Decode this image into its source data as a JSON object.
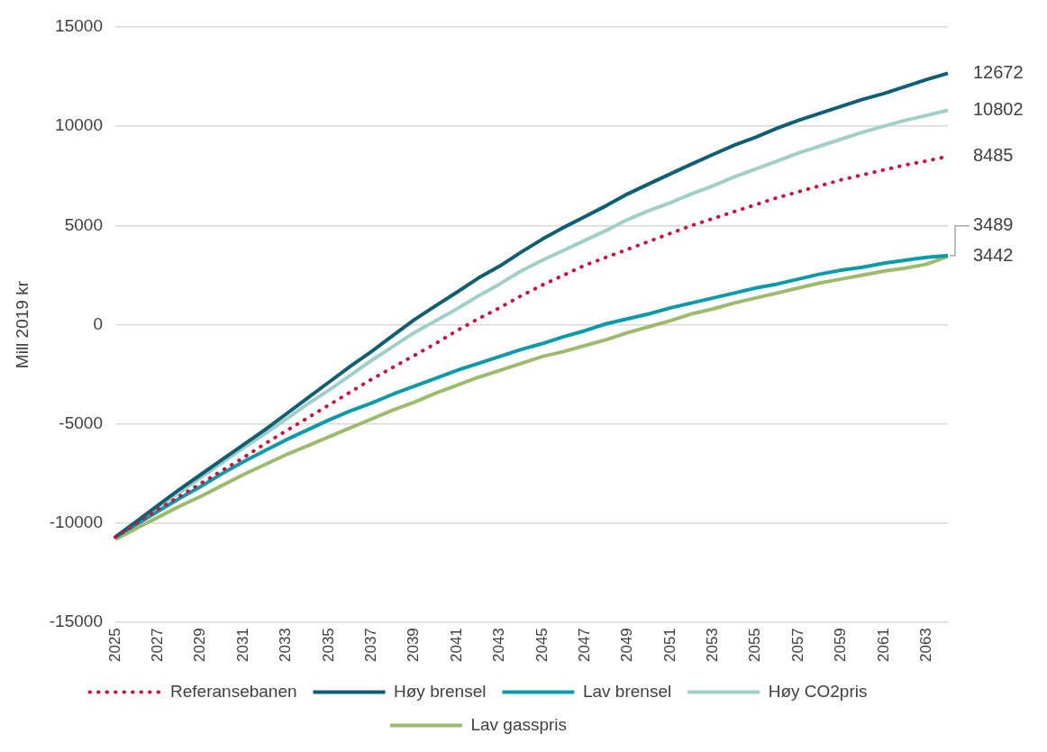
{
  "chart_data": {
    "type": "line",
    "ylabel": "Mill 2019 kr",
    "categories": [
      "2025",
      null,
      "2027",
      null,
      "2029",
      null,
      "2031",
      null,
      "2033",
      null,
      "2035",
      null,
      "2037",
      null,
      "2039",
      null,
      "2041",
      null,
      "2043",
      null,
      "2045",
      null,
      "2047",
      null,
      "2049",
      null,
      "2051",
      null,
      "2053",
      null,
      "2055",
      null,
      "2057",
      null,
      "2059",
      null,
      "2061",
      null,
      "2063",
      null
    ],
    "ylim": [
      -15000,
      15000
    ],
    "yticks": [
      -15000,
      -10000,
      -5000,
      0,
      5000,
      10000,
      15000
    ],
    "grid": "y",
    "legend": "bottom",
    "series": [
      {
        "name": "Referansebanen",
        "color": "#d0103a",
        "line_style": "dotted",
        "values": [
          -10700,
          -10000,
          -9300,
          -8650,
          -8000,
          -7350,
          -6700,
          -6000,
          -5350,
          -4700,
          -4050,
          -3400,
          -2750,
          -2150,
          -1550,
          -950,
          -300,
          300,
          850,
          1450,
          2000,
          2500,
          3000,
          3400,
          3800,
          4200,
          4600,
          5000,
          5350,
          5700,
          6050,
          6400,
          6700,
          7000,
          7300,
          7550,
          7800,
          8050,
          8250,
          8485
        ],
        "value_labels": [
          null,
          null,
          null,
          null,
          null,
          null,
          null,
          null,
          null,
          null,
          null,
          null,
          null,
          null,
          null,
          null,
          null,
          null,
          null,
          null,
          null,
          null,
          null,
          null,
          null,
          null,
          null,
          null,
          null,
          null,
          null,
          null,
          null,
          null,
          null,
          null,
          null,
          null,
          null,
          "8485"
        ]
      },
      {
        "name": "Høy brensel",
        "color": "#0e5f74",
        "values": [
          -10700,
          -9900,
          -9100,
          -8300,
          -7550,
          -6800,
          -6050,
          -5300,
          -4500,
          -3700,
          -2900,
          -2100,
          -1350,
          -550,
          250,
          950,
          1640,
          2350,
          2950,
          3650,
          4310,
          4900,
          5450,
          6000,
          6590,
          7100,
          7600,
          8100,
          8580,
          9050,
          9450,
          9900,
          10300,
          10650,
          11000,
          11350,
          11650,
          12000,
          12350,
          12672
        ],
        "value_labels": [
          null,
          null,
          null,
          null,
          null,
          null,
          null,
          null,
          null,
          null,
          null,
          null,
          null,
          null,
          null,
          null,
          null,
          null,
          null,
          null,
          null,
          null,
          null,
          null,
          null,
          null,
          null,
          null,
          null,
          null,
          null,
          null,
          null,
          null,
          null,
          null,
          null,
          null,
          null,
          "12672"
        ]
      },
      {
        "name": "Lav brensel",
        "color": "#0b9aa8",
        "values": [
          -10700,
          -10050,
          -9400,
          -8750,
          -8150,
          -7500,
          -6900,
          -6350,
          -5800,
          -5300,
          -4800,
          -4350,
          -3950,
          -3500,
          -3100,
          -2700,
          -2300,
          -1950,
          -1600,
          -1250,
          -950,
          -600,
          -300,
          50,
          300,
          550,
          850,
          1100,
          1350,
          1600,
          1850,
          2050,
          2300,
          2550,
          2750,
          2900,
          3100,
          3250,
          3400,
          3489
        ],
        "value_labels": [
          null,
          null,
          null,
          null,
          null,
          null,
          null,
          null,
          null,
          null,
          null,
          null,
          null,
          null,
          null,
          null,
          null,
          null,
          null,
          null,
          null,
          null,
          null,
          null,
          null,
          null,
          null,
          null,
          null,
          null,
          null,
          null,
          null,
          null,
          null,
          null,
          null,
          null,
          null,
          "3489"
        ]
      },
      {
        "name": "Høy CO2pris",
        "color": "#a0cfca",
        "values": [
          -10700,
          -9950,
          -9200,
          -8450,
          -7700,
          -6950,
          -6200,
          -5500,
          -4750,
          -4000,
          -3300,
          -2550,
          -1800,
          -1100,
          -400,
          200,
          800,
          1450,
          2050,
          2700,
          3250,
          3750,
          4250,
          4750,
          5300,
          5750,
          6150,
          6600,
          7000,
          7450,
          7850,
          8250,
          8650,
          9000,
          9350,
          9700,
          10000,
          10300,
          10550,
          10802
        ],
        "value_labels": [
          null,
          null,
          null,
          null,
          null,
          null,
          null,
          null,
          null,
          null,
          null,
          null,
          null,
          null,
          null,
          null,
          null,
          null,
          null,
          null,
          null,
          null,
          null,
          null,
          null,
          null,
          null,
          null,
          null,
          null,
          null,
          null,
          null,
          null,
          null,
          null,
          null,
          null,
          null,
          "10802"
        ]
      },
      {
        "name": "Lav gasspris",
        "color": "#9cbb6c",
        "values": [
          -10820,
          -10250,
          -9700,
          -9150,
          -8650,
          -8100,
          -7550,
          -7050,
          -6550,
          -6100,
          -5650,
          -5200,
          -4750,
          -4300,
          -3900,
          -3450,
          -3050,
          -2650,
          -2300,
          -1950,
          -1600,
          -1350,
          -1050,
          -750,
          -400,
          -100,
          200,
          550,
          800,
          1100,
          1350,
          1600,
          1850,
          2100,
          2300,
          2500,
          2700,
          2850,
          3050,
          3442
        ],
        "value_labels": [
          null,
          null,
          null,
          null,
          null,
          null,
          null,
          null,
          null,
          null,
          null,
          null,
          null,
          null,
          null,
          null,
          null,
          null,
          null,
          null,
          null,
          null,
          null,
          null,
          null,
          null,
          null,
          null,
          null,
          null,
          null,
          null,
          null,
          null,
          null,
          null,
          null,
          null,
          null,
          "3442"
        ]
      }
    ]
  }
}
